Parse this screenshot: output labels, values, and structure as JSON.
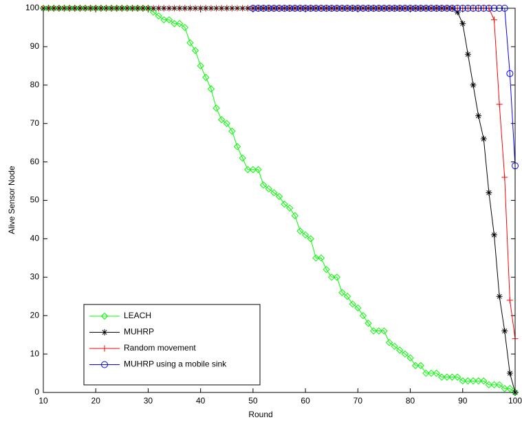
{
  "chart_data": {
    "type": "line",
    "xlabel": "Round",
    "ylabel": "Alive Sensor Node",
    "x": [
      10,
      11,
      12,
      13,
      14,
      15,
      16,
      17,
      18,
      19,
      20,
      21,
      22,
      23,
      24,
      25,
      26,
      27,
      28,
      29,
      30,
      31,
      32,
      33,
      34,
      35,
      36,
      37,
      38,
      39,
      40,
      41,
      42,
      43,
      44,
      45,
      46,
      47,
      48,
      49,
      50,
      51,
      52,
      53,
      54,
      55,
      56,
      57,
      58,
      59,
      60,
      61,
      62,
      63,
      64,
      65,
      66,
      67,
      68,
      69,
      70,
      71,
      72,
      73,
      74,
      75,
      76,
      77,
      78,
      79,
      80,
      81,
      82,
      83,
      84,
      85,
      86,
      87,
      88,
      89,
      90,
      91,
      92,
      93,
      94,
      95,
      96,
      97,
      98,
      99,
      100
    ],
    "xlim": [
      10,
      100
    ],
    "xticks": [
      10,
      20,
      30,
      40,
      50,
      60,
      70,
      80,
      90,
      100
    ],
    "ylim": [
      0,
      100
    ],
    "yticks": [
      0,
      10,
      20,
      30,
      40,
      50,
      60,
      70,
      80,
      90,
      100
    ],
    "grid": false,
    "legend_position": "lower left",
    "series": [
      {
        "name": "LEACH",
        "color": "#00ff00",
        "marker": "diamond",
        "values": [
          100,
          100,
          100,
          100,
          100,
          100,
          100,
          100,
          100,
          100,
          100,
          100,
          100,
          100,
          100,
          100,
          100,
          100,
          100,
          100,
          100,
          99,
          98,
          97,
          97,
          96,
          96,
          95,
          91,
          89,
          85,
          82,
          79,
          74,
          71,
          70,
          68,
          64,
          61,
          58,
          58,
          58,
          54,
          53,
          52,
          51,
          49,
          48,
          46,
          42,
          41,
          40,
          35,
          35,
          32,
          30,
          30,
          26,
          25,
          23,
          22,
          20,
          18,
          16,
          16,
          16,
          13,
          12,
          11,
          10,
          9,
          7,
          7,
          5,
          5,
          5,
          4,
          4,
          4,
          4,
          3,
          3,
          3,
          3,
          3,
          2,
          2,
          2,
          1,
          1,
          0
        ]
      },
      {
        "name": "MUHRP",
        "color": "#000000",
        "marker": "star",
        "values": [
          100,
          100,
          100,
          100,
          100,
          100,
          100,
          100,
          100,
          100,
          100,
          100,
          100,
          100,
          100,
          100,
          100,
          100,
          100,
          100,
          100,
          100,
          100,
          100,
          100,
          100,
          100,
          100,
          100,
          100,
          100,
          100,
          100,
          100,
          100,
          100,
          100,
          100,
          100,
          100,
          100,
          100,
          100,
          100,
          100,
          100,
          100,
          100,
          100,
          100,
          100,
          100,
          100,
          100,
          100,
          100,
          100,
          100,
          100,
          100,
          100,
          100,
          100,
          100,
          100,
          100,
          100,
          100,
          100,
          100,
          100,
          100,
          100,
          100,
          100,
          100,
          100,
          100,
          100,
          99,
          96,
          88,
          80,
          72,
          66,
          52,
          41,
          25,
          16,
          5,
          0
        ]
      },
      {
        "name": "Random movement",
        "color": "#ff0000",
        "marker": "plus",
        "values": [
          100,
          100,
          100,
          100,
          100,
          100,
          100,
          100,
          100,
          100,
          100,
          100,
          100,
          100,
          100,
          100,
          100,
          100,
          100,
          100,
          100,
          100,
          100,
          100,
          100,
          100,
          100,
          100,
          100,
          100,
          100,
          100,
          100,
          100,
          100,
          100,
          100,
          100,
          100,
          100,
          100,
          100,
          100,
          100,
          100,
          100,
          100,
          100,
          100,
          100,
          100,
          100,
          100,
          100,
          100,
          100,
          100,
          100,
          100,
          100,
          100,
          100,
          100,
          100,
          100,
          100,
          100,
          100,
          100,
          100,
          100,
          100,
          100,
          100,
          100,
          100,
          100,
          100,
          100,
          100,
          100,
          100,
          100,
          100,
          100,
          100,
          97,
          75,
          56,
          24,
          14
        ]
      },
      {
        "name": "MUHRP using a mobile sink",
        "color": "#0000ff",
        "marker": "circle",
        "values": [
          null,
          null,
          null,
          null,
          null,
          null,
          null,
          null,
          null,
          null,
          null,
          null,
          null,
          null,
          null,
          null,
          null,
          null,
          null,
          null,
          null,
          null,
          null,
          null,
          null,
          null,
          null,
          null,
          null,
          null,
          null,
          null,
          null,
          null,
          null,
          null,
          null,
          null,
          null,
          null,
          100,
          100,
          100,
          100,
          100,
          100,
          100,
          100,
          100,
          100,
          100,
          100,
          100,
          100,
          100,
          100,
          100,
          100,
          100,
          100,
          100,
          100,
          100,
          100,
          100,
          100,
          100,
          100,
          100,
          100,
          100,
          100,
          100,
          100,
          100,
          100,
          100,
          100,
          100,
          100,
          100,
          100,
          100,
          100,
          100,
          100,
          100,
          100,
          100,
          83,
          59
        ]
      }
    ]
  }
}
